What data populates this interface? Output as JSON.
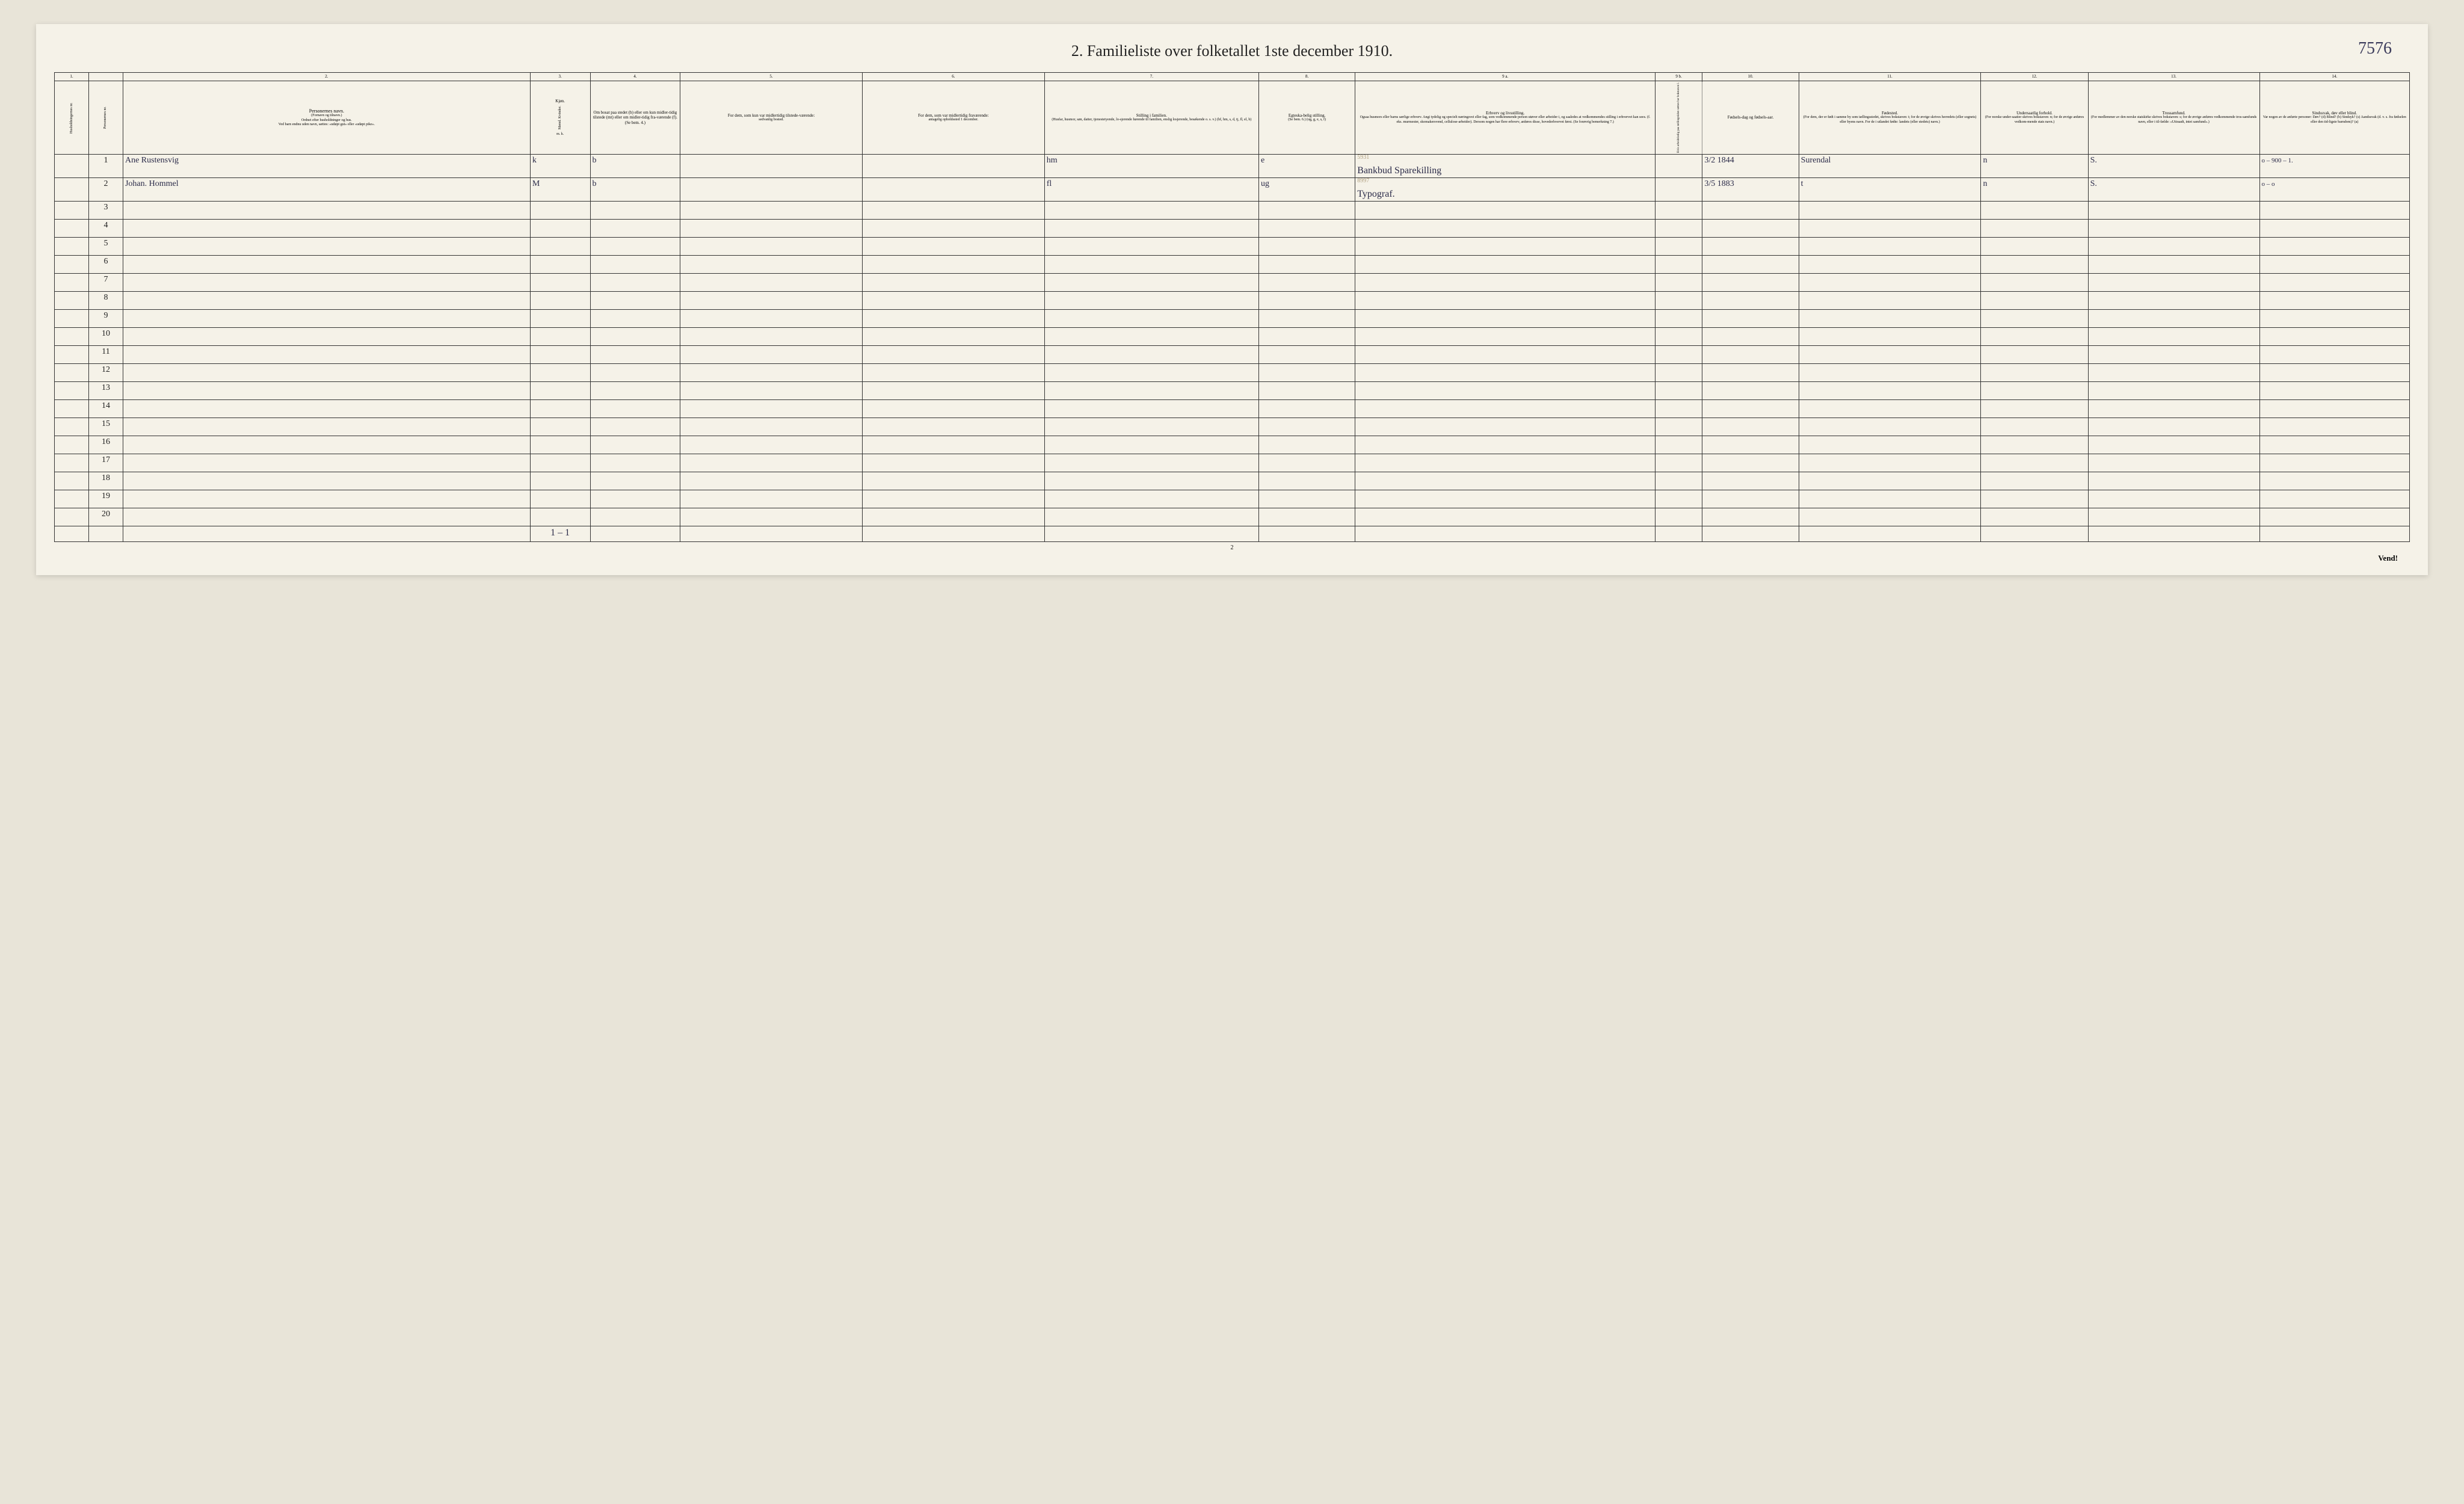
{
  "title": "2.  Familieliste over folketallet 1ste december 1910.",
  "corner_note": "7576",
  "page_number": "2",
  "vend": "Vend!",
  "col_nums": [
    "1.",
    "",
    "2.",
    "3.",
    "4.",
    "5.",
    "6.",
    "7.",
    "8.",
    "9 a.",
    "9 b.",
    "10.",
    "11.",
    "12.",
    "13.",
    "14."
  ],
  "headers": {
    "c1": "Husholdningernes nr.",
    "c1b": "Personernes nr.",
    "c2_title": "Personernes navn.",
    "c2_sub1": "(Fornavn og tilnavn.)",
    "c2_sub2": "Ordnet efter husholdninger og hus.",
    "c2_sub3": "Ved barn endnu uden navn, sættes: «udøpt gut» eller «udøpt pike».",
    "c3": "Kjøn.",
    "c3_sub": "Mænd. Kvinder.",
    "c3_mk": "m.  k.",
    "c4_title": "Om bosat paa stedet (b) eller om kun midler-tidig tilstede (mt) eller om midler-tidig fra-værende (f). (Se bem. 4.)",
    "c5_title": "For dem, som kun var midlertidig tilstede-værende:",
    "c5_sub": "sedvanlig bosted.",
    "c6_title": "For dem, som var midlertidig fraværende:",
    "c6_sub": "antagelig opholdssted 1 december.",
    "c7_title": "Stilling i familien.",
    "c7_sub": "(Husfar, husmor, søn, datter, tjenestetyende, lo-sjerende hørende til familien, enslig losjerende, besøkende o. s. v.) (hf, hm, s, d, tj, fl, el, b)",
    "c8_title": "Egteska-belig stilling.",
    "c8_sub": "(Se bem. 6.) (ug, g, e, s, f)",
    "c9a_title": "Erhverv og livsstilling.",
    "c9a_sub": "Ogsaa husmors eller barns særlige erhverv. Angi tydelig og specielt næringsvei eller fag, som vedkommende person utøver eller arbeider i, og saaledes at vedkommendes stilling i erhvervet kan sees. (f. eks. murmester, skomakersvend, cellulose-arbeider). Dersom nogen har flere erhverv, anføres disse, hovederhvervet først. (Se forøvrig bemerkning 7.)",
    "c9b": "Hvis arbeidsledig paa tællingstiden sættes her bokstaven l.",
    "c10_title": "Fødsels-dag og fødsels-aar.",
    "c11_title": "Fødested.",
    "c11_sub": "(For dem, der er født i samme by som tællingsstedet, skrives bokstaven: t; for de øvrige skrives herredets (eller sognets) eller byens navn. For de i utlandet fødte: landets (eller stedets) navn.)",
    "c12_title": "Undersaatlig forhold.",
    "c12_sub": "(For norske under-saatter skrives bokstaven: n; for de øvrige anføres vedkom-mende stats navn.)",
    "c13_title": "Trossamfund.",
    "c13_sub": "(For medlemmer av den norske statskirke skrives bokstaven: s; for de øvrige anføres vedkommende tros-samfunds navn, eller i til-fælde: «Uttraadt, intet samfund».)",
    "c14_title": "Sindssvak, døv eller blind.",
    "c14_sub": "Var nogen av de anførte personer: Døv? (d) Blind? (b) Sindsyk? (s) Aandssvak (d. v. s. fra fødselen eller den tid-ligste barndom)? (a)"
  },
  "rows": [
    {
      "n": "1",
      "name": "Ane  Rustensvig",
      "mk": "k",
      "b": "b",
      "c5": "",
      "c6": "",
      "fam": "hm",
      "egt": "e",
      "erhv": "Bankbud Sparekilling",
      "erhv_note": "5931",
      "dob": "3/2 1844",
      "birthplace": "Surendal",
      "nat": "n",
      "rel": "S.",
      "c14": "o – 900 – 1."
    },
    {
      "n": "2",
      "name": "Johan.  Hommel",
      "mk": "M",
      "b": "b",
      "c5": "",
      "c6": "",
      "fam": "fl",
      "egt": "ug",
      "erhv": "Typograf.",
      "erhv_note": "8997",
      "dob": "3/5 1883",
      "birthplace": "t",
      "nat": "n",
      "rel": "S.",
      "c14": "o –    o"
    }
  ],
  "row_labels": [
    "1",
    "2",
    "3",
    "4",
    "5",
    "6",
    "7",
    "8",
    "9",
    "10",
    "11",
    "12",
    "13",
    "14",
    "15",
    "16",
    "17",
    "18",
    "19",
    "20"
  ],
  "sum": "1 – 1",
  "col_widths_pct": [
    1.6,
    1.6,
    19,
    2.8,
    4.2,
    8.5,
    8.5,
    10,
    4.5,
    14,
    2.2,
    4.5,
    8.5,
    5,
    8,
    7
  ],
  "colors": {
    "page_bg": "#f5f2e8",
    "body_bg": "#e8e4d8",
    "border": "#333333",
    "text": "#222222",
    "handwriting": "#2a2a48"
  }
}
